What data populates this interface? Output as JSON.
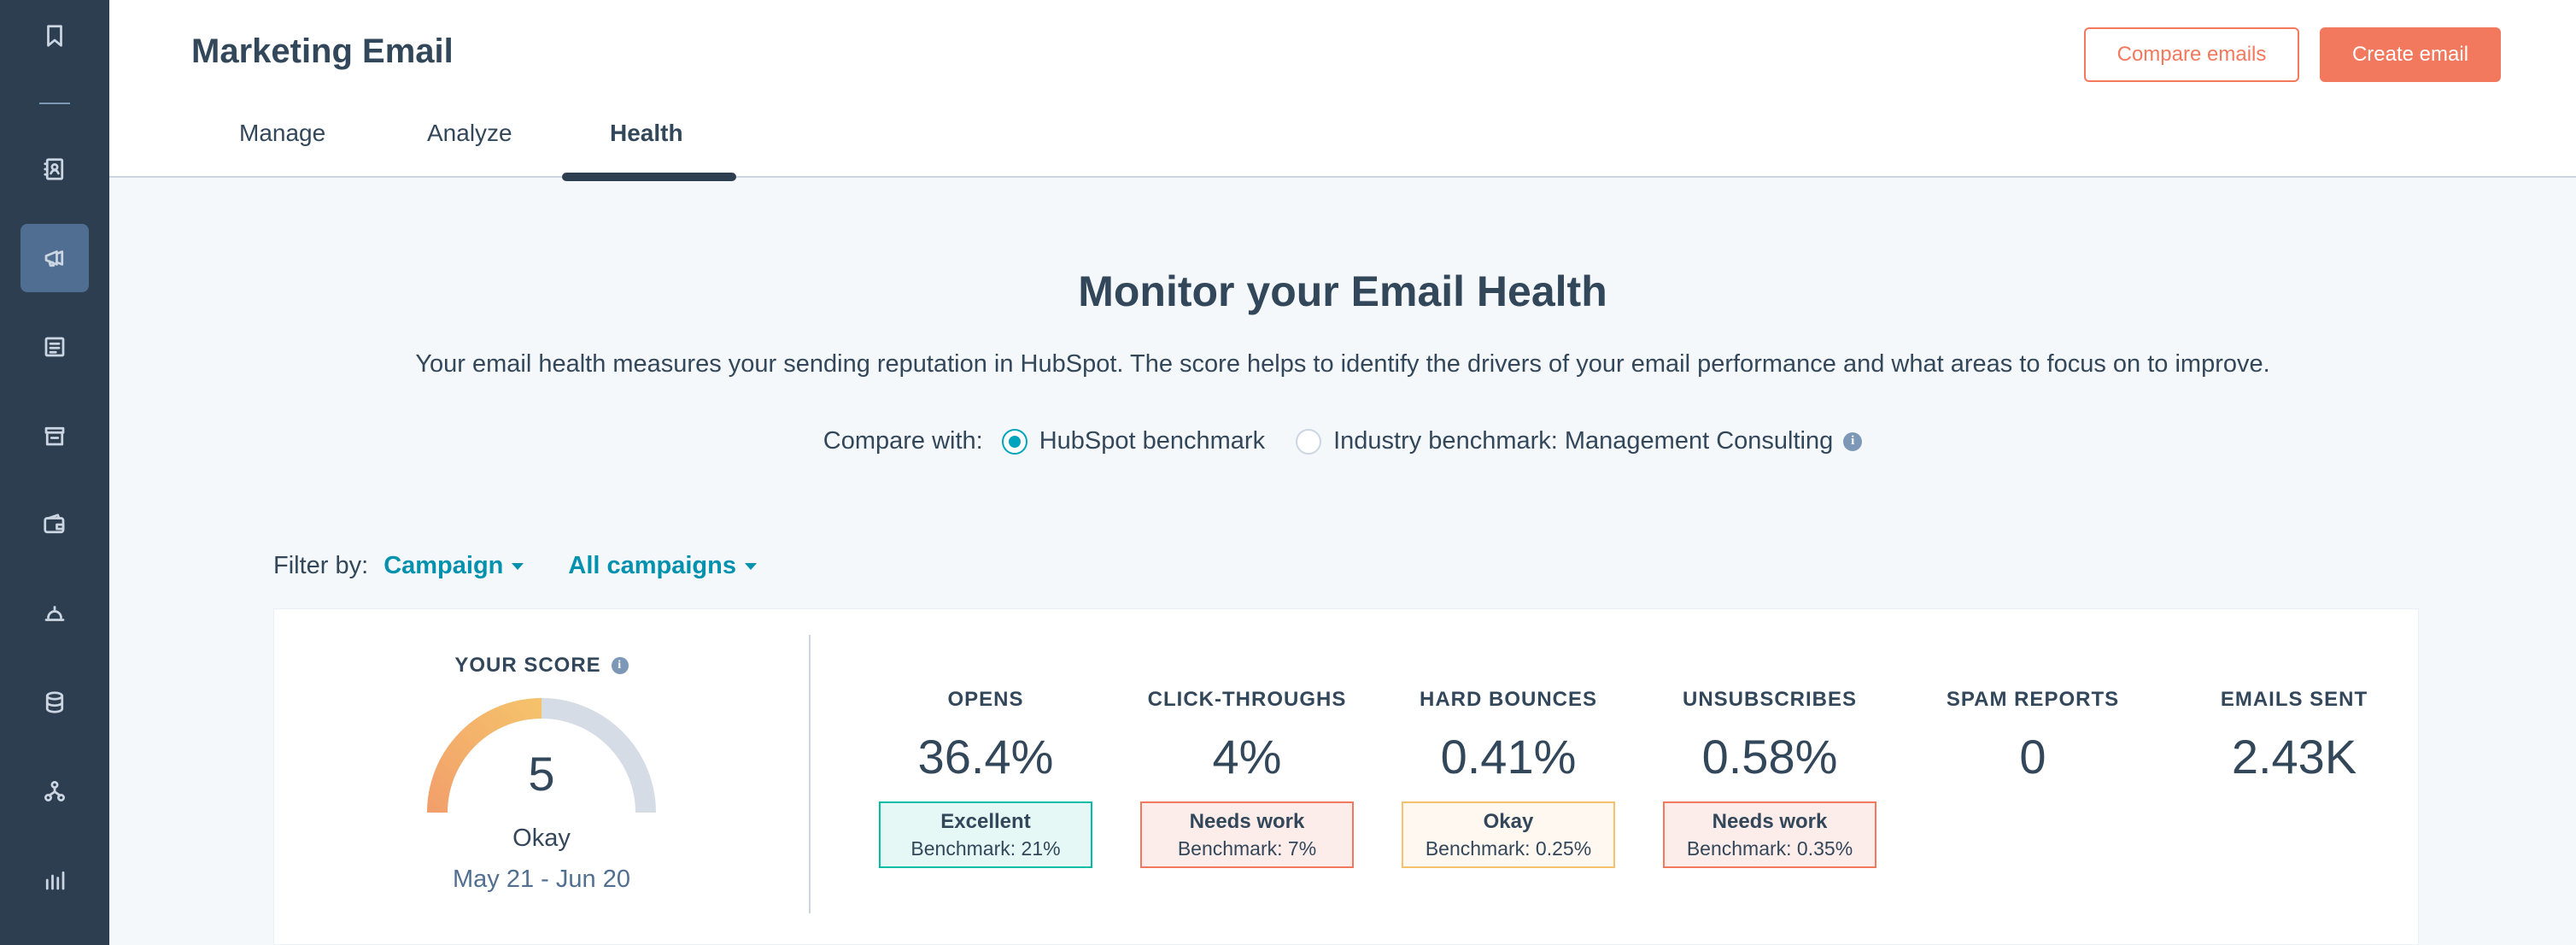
{
  "sidebar": {
    "items": [
      {
        "icon": "bookmark-icon"
      },
      {
        "icon": "contacts-icon"
      },
      {
        "icon": "marketing-megaphone-icon",
        "active": true
      },
      {
        "icon": "content-icon"
      },
      {
        "icon": "commerce-store-icon"
      },
      {
        "icon": "wallet-icon"
      },
      {
        "icon": "service-bell-icon"
      },
      {
        "icon": "database-icon"
      },
      {
        "icon": "automation-icon"
      },
      {
        "icon": "reporting-icon"
      }
    ]
  },
  "header": {
    "title": "Marketing Email",
    "compare_label": "Compare emails",
    "create_label": "Create email",
    "tabs": [
      {
        "label": "Manage"
      },
      {
        "label": "Analyze"
      },
      {
        "label": "Health",
        "active": true
      }
    ]
  },
  "main": {
    "title": "Monitor your Email Health",
    "description": "Your email health measures your sending reputation in HubSpot. The score helps to identify the drivers of your email performance and what areas to focus on to improve.",
    "compare": {
      "label": "Compare with:",
      "options": [
        {
          "label": "HubSpot benchmark",
          "checked": true
        },
        {
          "label": "Industry benchmark: Management Consulting",
          "checked": false
        }
      ]
    },
    "filter": {
      "label": "Filter by:",
      "type_value": "Campaign",
      "campaign_value": "All campaigns"
    }
  },
  "score": {
    "label": "YOUR SCORE",
    "value": "5",
    "status": "Okay",
    "range": "May 21 - Jun 20",
    "gauge_fill_fraction": 0.5
  },
  "metrics": [
    {
      "label": "OPENS",
      "value": "36.4%",
      "status": "Excellent",
      "benchmark": "Benchmark: 21%",
      "level": "excellent"
    },
    {
      "label": "CLICK-THROUGHS",
      "value": "4%",
      "status": "Needs work",
      "benchmark": "Benchmark: 7%",
      "level": "needswork"
    },
    {
      "label": "HARD BOUNCES",
      "value": "0.41%",
      "status": "Okay",
      "benchmark": "Benchmark: 0.25%",
      "level": "okay"
    },
    {
      "label": "UNSUBSCRIBES",
      "value": "0.58%",
      "status": "Needs work",
      "benchmark": "Benchmark: 0.35%",
      "level": "needswork"
    },
    {
      "label": "SPAM REPORTS",
      "value": "0"
    },
    {
      "label": "EMAILS SENT",
      "value": "2.43K"
    }
  ],
  "colors": {
    "accent": "#f2795e",
    "link": "#0091ae",
    "excellent": "#00bda5",
    "okay": "#f5c26b",
    "needs_work": "#f2795e"
  }
}
